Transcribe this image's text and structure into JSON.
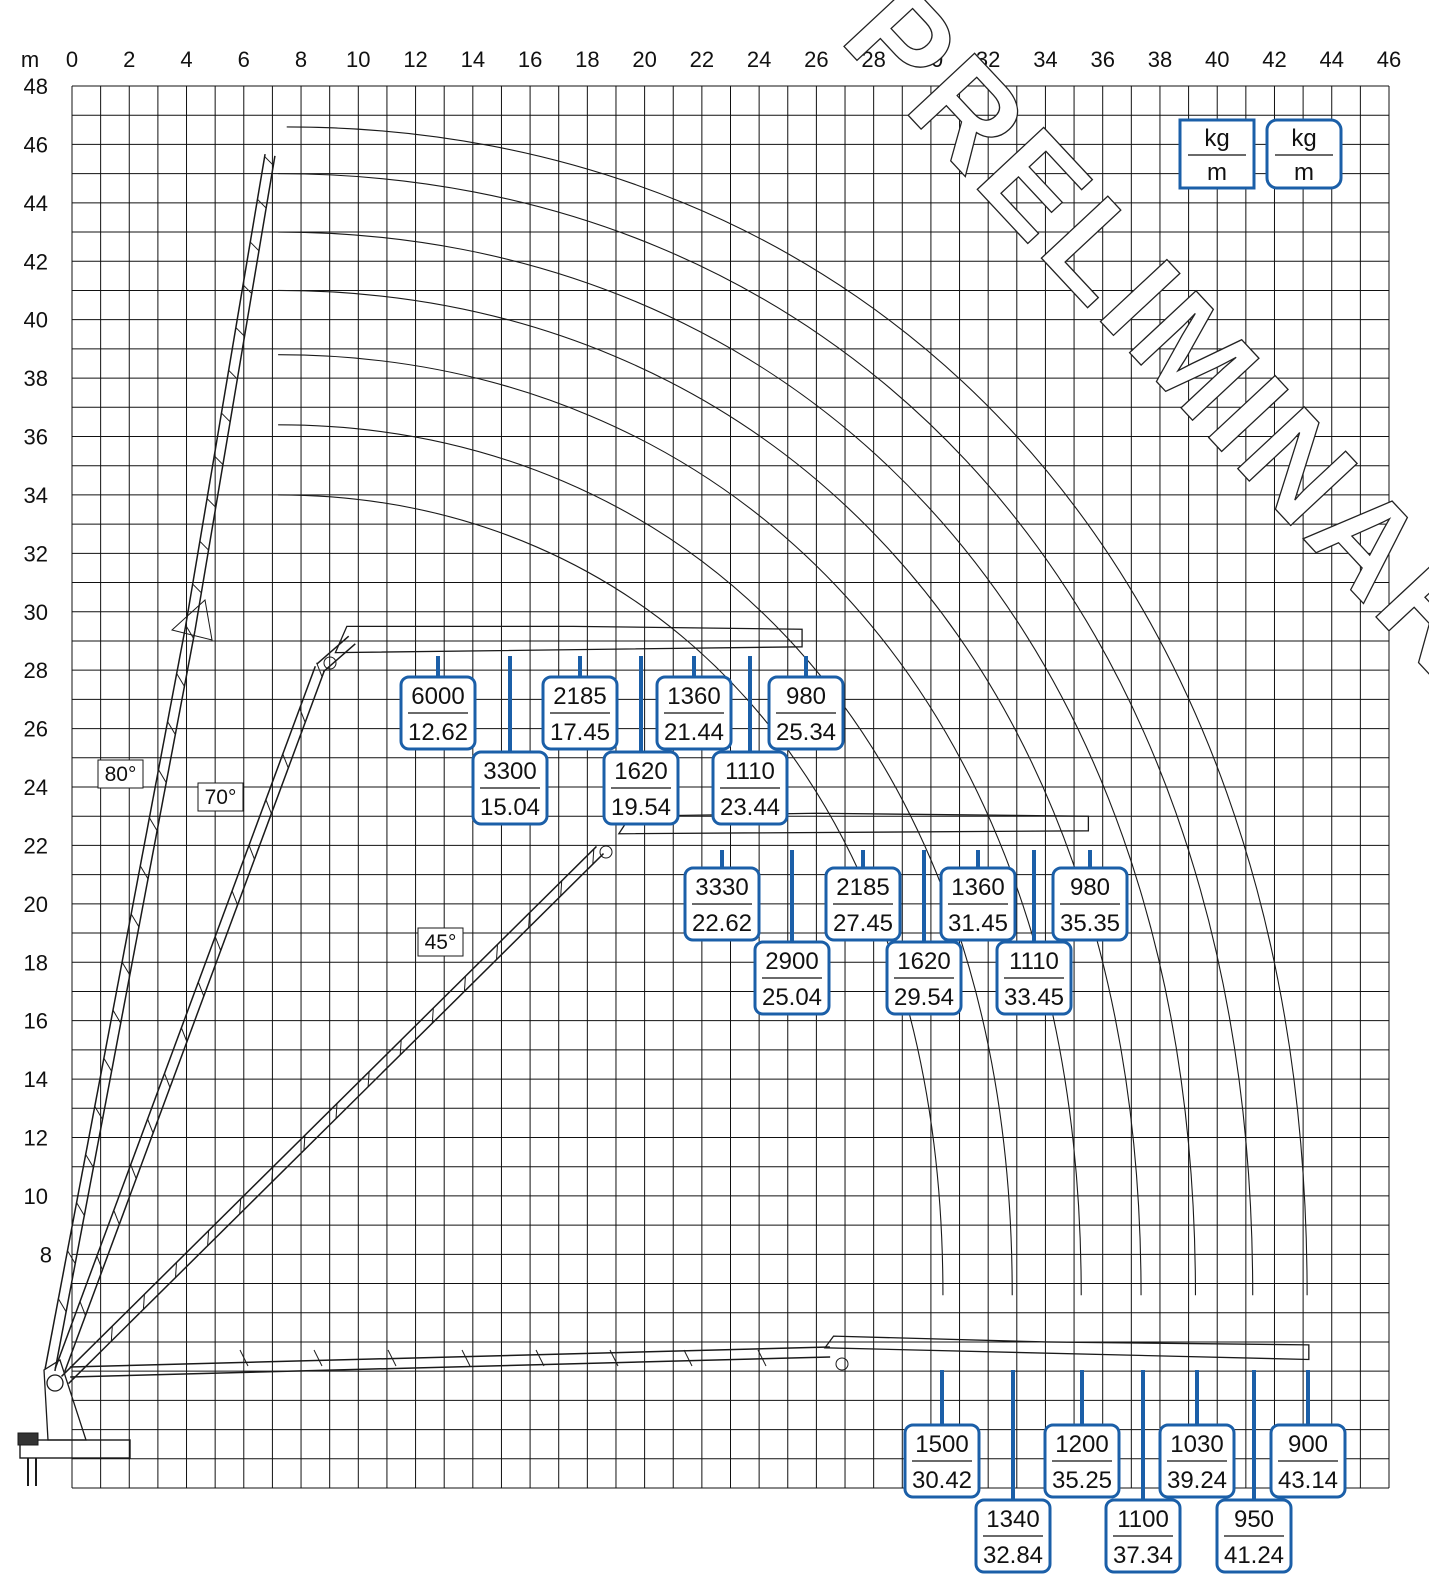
{
  "chart_data": {
    "type": "load-chart",
    "watermark": "PRELIMINARY",
    "x_unit_label": "m",
    "xlim": [
      0,
      46
    ],
    "ylim": [
      0,
      48
    ],
    "x_ticks": [
      0,
      2,
      4,
      6,
      8,
      10,
      12,
      14,
      16,
      18,
      20,
      22,
      24,
      26,
      28,
      30,
      32,
      34,
      36,
      38,
      40,
      42,
      44,
      46
    ],
    "y_ticks": [
      8,
      10,
      12,
      14,
      16,
      18,
      20,
      22,
      24,
      26,
      28,
      30,
      32,
      34,
      36,
      38,
      40,
      42,
      44,
      46,
      48
    ],
    "legend": {
      "top": "kg",
      "bottom": "m"
    },
    "boom_angles": [
      "80°",
      "70°",
      "45°"
    ],
    "reach_arcs_m": [
      30.42,
      32.84,
      35.25,
      37.34,
      39.24,
      41.24,
      43.14
    ],
    "load_points": {
      "boom_28m": [
        {
          "kg": "6000",
          "m": "12.62"
        },
        {
          "kg": "3300",
          "m": "15.04"
        },
        {
          "kg": "2185",
          "m": "17.45"
        },
        {
          "kg": "1620",
          "m": "19.54"
        },
        {
          "kg": "1360",
          "m": "21.44"
        },
        {
          "kg": "1110",
          "m": "23.44"
        },
        {
          "kg": "980",
          "m": "25.34"
        }
      ],
      "boom_22m": [
        {
          "kg": "3330",
          "m": "22.62"
        },
        {
          "kg": "2900",
          "m": "25.04"
        },
        {
          "kg": "2185",
          "m": "27.45"
        },
        {
          "kg": "1620",
          "m": "29.54"
        },
        {
          "kg": "1360",
          "m": "31.45"
        },
        {
          "kg": "1110",
          "m": "33.45"
        },
        {
          "kg": "980",
          "m": "35.35"
        }
      ],
      "boom_horizontal": [
        {
          "kg": "1500",
          "m": "30.42"
        },
        {
          "kg": "1340",
          "m": "32.84"
        },
        {
          "kg": "1200",
          "m": "35.25"
        },
        {
          "kg": "1100",
          "m": "37.34"
        },
        {
          "kg": "1030",
          "m": "39.24"
        },
        {
          "kg": "950",
          "m": "41.24"
        },
        {
          "kg": "900",
          "m": "43.14"
        }
      ]
    }
  },
  "colors": {
    "box_border": "#1b5fa8",
    "grid": "#111111",
    "line": "#1a1a1a"
  }
}
